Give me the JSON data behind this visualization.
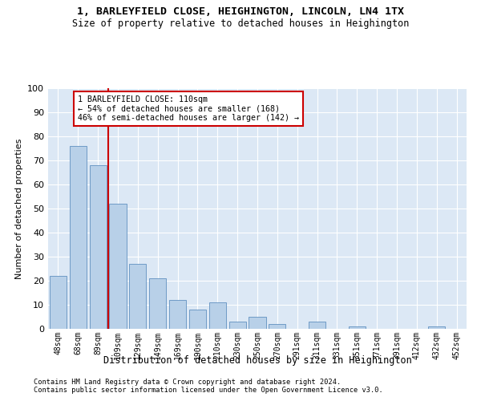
{
  "title": "1, BARLEYFIELD CLOSE, HEIGHINGTON, LINCOLN, LN4 1TX",
  "subtitle": "Size of property relative to detached houses in Heighington",
  "xlabel": "Distribution of detached houses by size in Heighington",
  "ylabel": "Number of detached properties",
  "bar_labels": [
    "48sqm",
    "68sqm",
    "89sqm",
    "109sqm",
    "129sqm",
    "149sqm",
    "169sqm",
    "190sqm",
    "210sqm",
    "230sqm",
    "250sqm",
    "270sqm",
    "291sqm",
    "311sqm",
    "331sqm",
    "351sqm",
    "371sqm",
    "391sqm",
    "412sqm",
    "432sqm",
    "452sqm"
  ],
  "bar_values": [
    22,
    76,
    68,
    52,
    27,
    21,
    12,
    8,
    11,
    3,
    5,
    2,
    0,
    3,
    0,
    1,
    0,
    0,
    0,
    1,
    0
  ],
  "bar_color": "#b8d0e8",
  "bar_edge_color": "#6090c0",
  "bg_color": "#dce8f5",
  "grid_color": "#ffffff",
  "vline_color": "#cc0000",
  "annotation_text": "1 BARLEYFIELD CLOSE: 110sqm\n← 54% of detached houses are smaller (168)\n46% of semi-detached houses are larger (142) →",
  "annotation_box_color": "#cc0000",
  "ylim": [
    0,
    100
  ],
  "yticks": [
    0,
    10,
    20,
    30,
    40,
    50,
    60,
    70,
    80,
    90,
    100
  ],
  "footer_line1": "Contains HM Land Registry data © Crown copyright and database right 2024.",
  "footer_line2": "Contains public sector information licensed under the Open Government Licence v3.0."
}
